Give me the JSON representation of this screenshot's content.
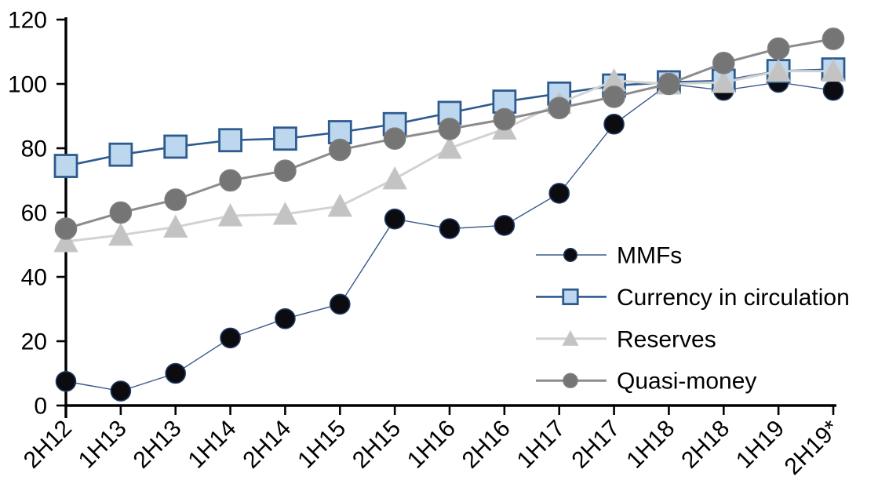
{
  "chart_data": {
    "type": "line",
    "title": "",
    "xlabel": "",
    "ylabel": "",
    "ylim": [
      0,
      120
    ],
    "yticks": [
      0,
      20,
      40,
      60,
      80,
      100,
      120
    ],
    "grid": false,
    "legend_position": "inside-right",
    "categories": [
      "2H12",
      "1H13",
      "2H13",
      "1H14",
      "2H14",
      "1H15",
      "2H15",
      "1H16",
      "2H16",
      "1H17",
      "2H17",
      "1H18",
      "2H18",
      "1H19",
      "2H19*"
    ],
    "series": [
      {
        "name": "MMFs",
        "values": [
          7.5,
          4.5,
          10,
          21,
          27,
          31.5,
          58,
          55,
          56,
          66,
          87.5,
          100,
          98,
          100.5,
          98
        ],
        "marker": "circle",
        "marker_fill": "#0b0b10",
        "marker_stroke": "#1f3864",
        "line_color": "#3a5a8c",
        "line_width": 1.4,
        "marker_size": 25
      },
      {
        "name": "Currency in circulation",
        "values": [
          74.5,
          78,
          80.5,
          82.5,
          83,
          85,
          87.5,
          91,
          94.5,
          97,
          99.5,
          100.5,
          101,
          104,
          104.5
        ],
        "marker": "square",
        "marker_fill": "#bdd7ee",
        "marker_stroke": "#2e5b8f",
        "line_color": "#2e5b8f",
        "line_width": 2.6,
        "marker_size": 28
      },
      {
        "name": "Reserves",
        "values": [
          51,
          53,
          55.5,
          59,
          59.5,
          62,
          70.5,
          80,
          86,
          94,
          101,
          100,
          100.5,
          104,
          104
        ],
        "marker": "triangle",
        "marker_fill": "#c3c3c3",
        "marker_stroke": "#c9c9c9",
        "line_color": "#d2d2d2",
        "line_width": 3,
        "marker_size": 30
      },
      {
        "name": "Quasi-money",
        "values": [
          55,
          60,
          64,
          70,
          73,
          79.5,
          83,
          86,
          89,
          92.5,
          96,
          100,
          106.5,
          111,
          114
        ],
        "marker": "circle",
        "marker_fill": "#757575",
        "marker_stroke": "#7d7d7d",
        "line_color": "#8c8c8c",
        "line_width": 3,
        "marker_size": 27
      }
    ],
    "axis_color": "#000000",
    "tick_label_color": "#000000"
  }
}
